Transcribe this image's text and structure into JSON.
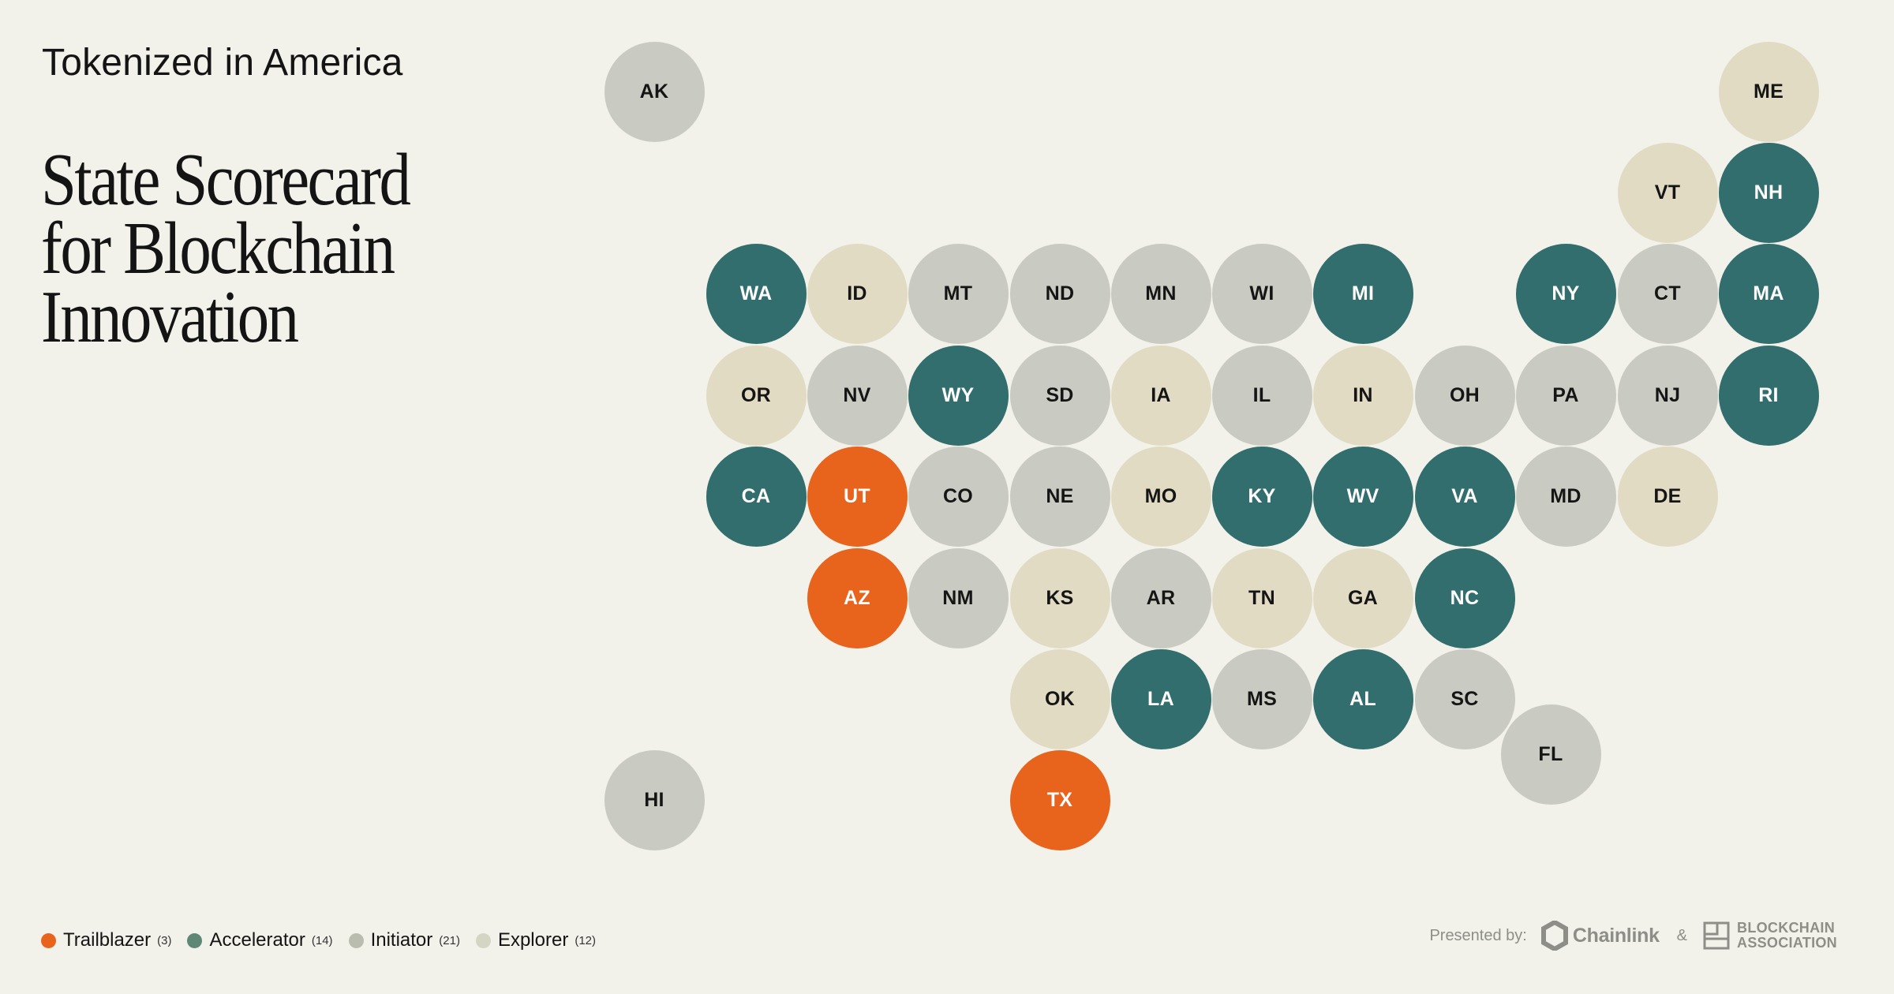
{
  "header": {
    "eyebrow": "Tokenized in America",
    "title_lines": [
      "State Scorecard",
      "for Blockchain",
      "Innovation"
    ]
  },
  "tier_colors": {
    "trailblazer": "#e8631b",
    "accelerator": "#316e6d",
    "initiator": "#c9cbc2",
    "explorer": "#e2dbc4"
  },
  "tier_text_colors": {
    "trailblazer": "#ffffff",
    "accelerator": "#ffffff",
    "initiator": "#151515",
    "explorer": "#151515"
  },
  "legend": [
    {
      "tier": "trailblazer",
      "label": "Trailblazer",
      "count": "(3)",
      "color": "#e8631b"
    },
    {
      "tier": "accelerator",
      "label": "Accelerator",
      "count": "(14)",
      "color": "#5e8776"
    },
    {
      "tier": "initiator",
      "label": "Initiator",
      "count": "(21)",
      "color": "#b9bdae"
    },
    {
      "tier": "explorer",
      "label": "Explorer",
      "count": "(12)",
      "color": "#d4d6c3"
    }
  ],
  "states": [
    {
      "code": "AK",
      "tier": "initiator"
    },
    {
      "code": "ME",
      "tier": "explorer"
    },
    {
      "code": "VT",
      "tier": "explorer"
    },
    {
      "code": "NH",
      "tier": "accelerator"
    },
    {
      "code": "WA",
      "tier": "accelerator"
    },
    {
      "code": "ID",
      "tier": "explorer"
    },
    {
      "code": "MT",
      "tier": "initiator"
    },
    {
      "code": "ND",
      "tier": "initiator"
    },
    {
      "code": "MN",
      "tier": "initiator"
    },
    {
      "code": "WI",
      "tier": "initiator"
    },
    {
      "code": "MI",
      "tier": "accelerator"
    },
    {
      "code": "NY",
      "tier": "accelerator"
    },
    {
      "code": "CT",
      "tier": "initiator"
    },
    {
      "code": "MA",
      "tier": "accelerator"
    },
    {
      "code": "OR",
      "tier": "explorer"
    },
    {
      "code": "NV",
      "tier": "initiator"
    },
    {
      "code": "WY",
      "tier": "accelerator"
    },
    {
      "code": "SD",
      "tier": "initiator"
    },
    {
      "code": "IA",
      "tier": "explorer"
    },
    {
      "code": "IL",
      "tier": "initiator"
    },
    {
      "code": "IN",
      "tier": "explorer"
    },
    {
      "code": "OH",
      "tier": "initiator"
    },
    {
      "code": "PA",
      "tier": "initiator"
    },
    {
      "code": "NJ",
      "tier": "initiator"
    },
    {
      "code": "RI",
      "tier": "accelerator"
    },
    {
      "code": "CA",
      "tier": "accelerator"
    },
    {
      "code": "UT",
      "tier": "trailblazer"
    },
    {
      "code": "CO",
      "tier": "initiator"
    },
    {
      "code": "NE",
      "tier": "initiator"
    },
    {
      "code": "MO",
      "tier": "explorer"
    },
    {
      "code": "KY",
      "tier": "accelerator"
    },
    {
      "code": "WV",
      "tier": "accelerator"
    },
    {
      "code": "VA",
      "tier": "accelerator"
    },
    {
      "code": "MD",
      "tier": "initiator"
    },
    {
      "code": "DE",
      "tier": "explorer"
    },
    {
      "code": "AZ",
      "tier": "trailblazer"
    },
    {
      "code": "NM",
      "tier": "initiator"
    },
    {
      "code": "KS",
      "tier": "explorer"
    },
    {
      "code": "AR",
      "tier": "initiator"
    },
    {
      "code": "TN",
      "tier": "explorer"
    },
    {
      "code": "GA",
      "tier": "explorer"
    },
    {
      "code": "NC",
      "tier": "accelerator"
    },
    {
      "code": "OK",
      "tier": "explorer"
    },
    {
      "code": "LA",
      "tier": "accelerator"
    },
    {
      "code": "MS",
      "tier": "initiator"
    },
    {
      "code": "AL",
      "tier": "accelerator"
    },
    {
      "code": "SC",
      "tier": "initiator"
    },
    {
      "code": "FL",
      "tier": "initiator"
    },
    {
      "code": "HI",
      "tier": "initiator"
    },
    {
      "code": "TX",
      "tier": "trailblazer"
    }
  ],
  "footer": {
    "presented_by": "Presented by:",
    "chainlink": "Chainlink",
    "ampersand": "&",
    "blockchain_association": [
      "BLOCKCHAIN",
      "ASSOCIATION"
    ],
    "chainlink_icon": "chainlink-hexagon-icon",
    "ba_icon": "blockchain-association-icon"
  }
}
